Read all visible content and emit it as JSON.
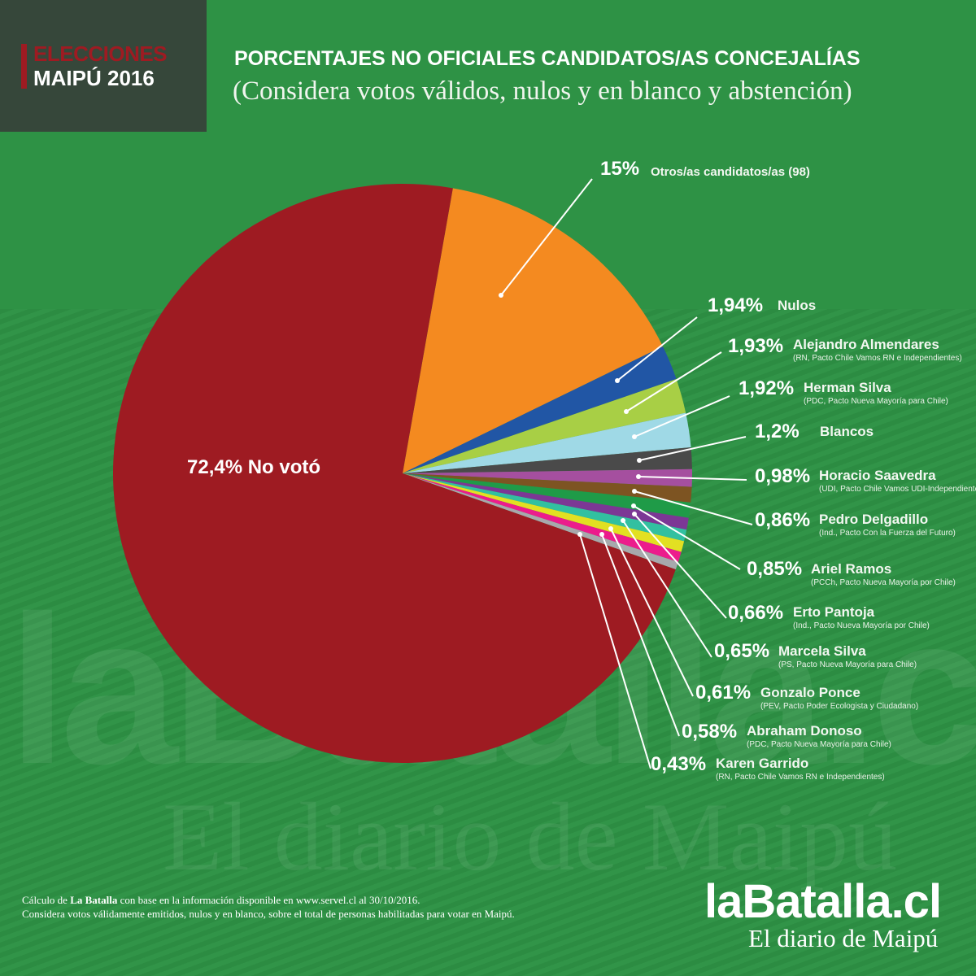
{
  "badge": {
    "line1": "ELECCIONES",
    "line2": "MAIPÚ 2016"
  },
  "header": {
    "title": "PORCENTAJES NO OFICIALES CANDIDATOS/AS CONCEJALÍAS",
    "subtitle": "(Considera votos válidos, nulos y en blanco y abstención)"
  },
  "chart_data": {
    "type": "pie",
    "title": "PORCENTAJES NO OFICIALES CANDIDATOS/AS CONCEJALÍAS",
    "slices": [
      {
        "pct_label": "15%",
        "value": 15,
        "name": "Otros/as candidatos/as (98)",
        "detail": "",
        "color": "#f48a20"
      },
      {
        "pct_label": "1,94%",
        "value": 1.94,
        "name": "Nulos",
        "detail": "",
        "color": "#2156a5"
      },
      {
        "pct_label": "1,93%",
        "value": 1.93,
        "name": "Alejandro Almendares",
        "detail": "(RN, Pacto Chile Vamos RN e Independientes)",
        "color": "#a8cf45"
      },
      {
        "pct_label": "1,92%",
        "value": 1.92,
        "name": "Herman Silva",
        "detail": "(PDC, Pacto Nueva Mayoría para Chile)",
        "color": "#9fd9e6"
      },
      {
        "pct_label": "1,2%",
        "value": 1.2,
        "name": "Blancos",
        "detail": "",
        "color": "#4a4a4a"
      },
      {
        "pct_label": "0,98%",
        "value": 0.98,
        "name": "Horacio Saavedra",
        "detail": "(UDI, Pacto Chile Vamos UDI-Independientes)",
        "color": "#a54f9f"
      },
      {
        "pct_label": "0,86%",
        "value": 0.86,
        "name": "Pedro Delgadillo",
        "detail": "(Ind., Pacto Con la Fuerza del Futuro)",
        "color": "#7d5422"
      },
      {
        "pct_label": "0,85%",
        "value": 0.85,
        "name": "Ariel Ramos",
        "detail": "(PCCh, Pacto Nueva Mayoría por Chile)",
        "color": "#1f9b48"
      },
      {
        "pct_label": "0,66%",
        "value": 0.66,
        "name": "Erto Pantoja",
        "detail": "(Ind., Pacto Nueva Mayoría por Chile)",
        "color": "#7c3795"
      },
      {
        "pct_label": "0,65%",
        "value": 0.65,
        "name": "Marcela Silva",
        "detail": "(PS, Pacto Nueva Mayoría para Chile)",
        "color": "#32c0a0"
      },
      {
        "pct_label": "0,61%",
        "value": 0.61,
        "name": "Gonzalo Ponce",
        "detail": "(PEV, Pacto Poder Ecologista y Ciudadano)",
        "color": "#e2e022"
      },
      {
        "pct_label": "0,58%",
        "value": 0.58,
        "name": "Abraham Donoso",
        "detail": "(PDC, Pacto Nueva Mayoría para Chile)",
        "color": "#ec1c8c"
      },
      {
        "pct_label": "0,43%",
        "value": 0.43,
        "name": "Karen Garrido",
        "detail": "(RN, Pacto Chile Vamos RN e Independientes)",
        "color": "#a7a9ac"
      },
      {
        "pct_label": "72,4%",
        "value": 72.4,
        "name": "No votó",
        "detail": "",
        "color": "#9e1b22"
      }
    ],
    "main_label": "72,4% No votó"
  },
  "footer": {
    "line1_pre": "Cálculo de ",
    "line1_bold": "La Batalla",
    "line1_post": " con base en la información disponible en www.servel.cl al 30/10/2016.",
    "line2": "Considera votos válidamente emitidos, nulos y en blanco, sobre  el total de personas habilitadas para votar en Maipú."
  },
  "brand": {
    "logo": "laBatalla.cl",
    "tagline": "El diario de Maipú",
    "watermark": "laBatalla.cl",
    "watermark2": "El diario de Maipú"
  }
}
